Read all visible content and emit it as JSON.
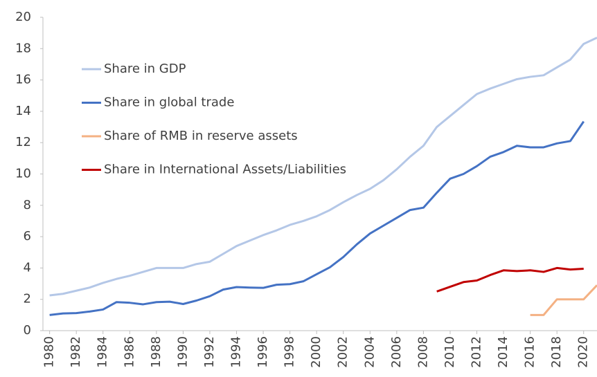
{
  "chart_data": {
    "type": "line",
    "x": [
      1980,
      1981,
      1982,
      1983,
      1984,
      1985,
      1986,
      1987,
      1988,
      1989,
      1990,
      1991,
      1992,
      1993,
      1994,
      1995,
      1996,
      1997,
      1998,
      1999,
      2000,
      2001,
      2002,
      2003,
      2004,
      2005,
      2006,
      2007,
      2008,
      2009,
      2010,
      2011,
      2012,
      2013,
      2014,
      2015,
      2016,
      2017,
      2018,
      2019,
      2020,
      2021
    ],
    "series": [
      {
        "name": "Share in GDP",
        "color": "#b4c7e7",
        "values": [
          2.25,
          2.35,
          2.55,
          2.75,
          3.05,
          3.3,
          3.5,
          3.75,
          4.0,
          4.0,
          4.0,
          4.25,
          4.4,
          4.9,
          5.4,
          5.75,
          6.1,
          6.4,
          6.75,
          7.0,
          7.3,
          7.7,
          8.2,
          8.65,
          9.05,
          9.6,
          10.3,
          11.1,
          11.8,
          13.0,
          13.7,
          14.4,
          15.1,
          15.45,
          15.75,
          16.05,
          16.2,
          16.3,
          16.8,
          17.3,
          18.3,
          18.7
        ]
      },
      {
        "name": "Share in global trade",
        "color": "#4472c4",
        "values": [
          1.0,
          1.1,
          1.12,
          1.22,
          1.35,
          1.82,
          1.78,
          1.68,
          1.82,
          1.85,
          1.7,
          1.92,
          2.2,
          2.62,
          2.78,
          2.75,
          2.73,
          2.93,
          2.97,
          3.15,
          3.6,
          4.05,
          4.7,
          5.5,
          6.2,
          6.7,
          7.2,
          7.7,
          7.85,
          8.8,
          9.7,
          10.0,
          10.5,
          11.1,
          11.4,
          11.8,
          11.7,
          11.7,
          11.95,
          12.1,
          13.35,
          null
        ]
      },
      {
        "name": "Share of RMB in reserve assets",
        "color": "#f4b183",
        "values": [
          null,
          null,
          null,
          null,
          null,
          null,
          null,
          null,
          null,
          null,
          null,
          null,
          null,
          null,
          null,
          null,
          null,
          null,
          null,
          null,
          null,
          null,
          null,
          null,
          null,
          null,
          null,
          null,
          null,
          null,
          null,
          null,
          null,
          null,
          null,
          null,
          1.0,
          1.0,
          2.0,
          2.0,
          2.0,
          2.9
        ]
      },
      {
        "name": "Share in International Assets/Liabilities",
        "color": "#c00000",
        "values": [
          null,
          null,
          null,
          null,
          null,
          null,
          null,
          null,
          null,
          null,
          null,
          null,
          null,
          null,
          null,
          null,
          null,
          null,
          null,
          null,
          null,
          null,
          null,
          null,
          null,
          null,
          null,
          null,
          null,
          2.5,
          2.8,
          3.1,
          3.2,
          3.55,
          3.85,
          3.8,
          3.85,
          3.75,
          4.0,
          3.9,
          3.95,
          null
        ]
      }
    ],
    "xlim": [
      1979.5,
      2021
    ],
    "xticks": [
      1980,
      1982,
      1984,
      1986,
      1988,
      1990,
      1992,
      1994,
      1996,
      1998,
      2000,
      2002,
      2004,
      2006,
      2008,
      2010,
      2012,
      2014,
      2016,
      2018,
      2020
    ],
    "ylim": [
      0,
      20
    ],
    "yticks": [
      0,
      2,
      4,
      6,
      8,
      10,
      12,
      14,
      16,
      18,
      20
    ],
    "legend": "upper-left"
  }
}
